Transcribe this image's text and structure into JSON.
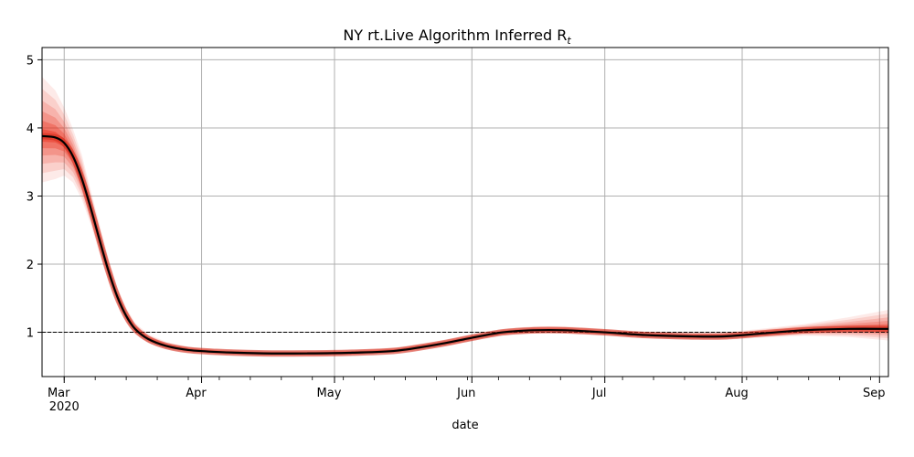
{
  "chart_data": {
    "type": "line",
    "title": "NY rt.Live Algorithm Inferred R",
    "title_subscript": "t",
    "xlabel": "date",
    "ylabel": "",
    "x_ticks": [
      {
        "label": "Mar",
        "sublabel": "2020",
        "date": "2020-03-01"
      },
      {
        "label": "Apr",
        "date": "2020-04-01"
      },
      {
        "label": "May",
        "date": "2020-05-01"
      },
      {
        "label": "Jun",
        "date": "2020-06-01"
      },
      {
        "label": "Jul",
        "date": "2020-07-01"
      },
      {
        "label": "Aug",
        "date": "2020-08-01"
      },
      {
        "label": "Sep",
        "date": "2020-09-01"
      }
    ],
    "y_ticks": [
      1,
      2,
      3,
      4,
      5
    ],
    "xlim": [
      "2020-02-25",
      "2020-09-03"
    ],
    "ylim": [
      0.35,
      5.18
    ],
    "grid": true,
    "reference_line": {
      "y": 1.0,
      "style": "dashed",
      "color": "#000000"
    },
    "colors": {
      "median": "#000000",
      "band": "#e8311f",
      "grid": "#b0b0b0"
    },
    "series": [
      {
        "role": "median",
        "points": [
          [
            "2020-02-25",
            3.88
          ],
          [
            "2020-02-28",
            3.86
          ],
          [
            "2020-03-01",
            3.78
          ],
          [
            "2020-03-03",
            3.58
          ],
          [
            "2020-03-05",
            3.25
          ],
          [
            "2020-03-07",
            2.82
          ],
          [
            "2020-03-09",
            2.35
          ],
          [
            "2020-03-11",
            1.9
          ],
          [
            "2020-03-13",
            1.52
          ],
          [
            "2020-03-15",
            1.24
          ],
          [
            "2020-03-17",
            1.05
          ],
          [
            "2020-03-20",
            0.9
          ],
          [
            "2020-03-24",
            0.8
          ],
          [
            "2020-03-29",
            0.74
          ],
          [
            "2020-04-05",
            0.71
          ],
          [
            "2020-04-15",
            0.69
          ],
          [
            "2020-04-25",
            0.69
          ],
          [
            "2020-05-05",
            0.7
          ],
          [
            "2020-05-15",
            0.73
          ],
          [
            "2020-05-25",
            0.83
          ],
          [
            "2020-06-01",
            0.92
          ],
          [
            "2020-06-08",
            1.0
          ],
          [
            "2020-06-15",
            1.03
          ],
          [
            "2020-06-22",
            1.03
          ],
          [
            "2020-07-01",
            1.0
          ],
          [
            "2020-07-10",
            0.96
          ],
          [
            "2020-07-20",
            0.94
          ],
          [
            "2020-07-28",
            0.94
          ],
          [
            "2020-08-05",
            0.98
          ],
          [
            "2020-08-15",
            1.03
          ],
          [
            "2020-08-25",
            1.05
          ],
          [
            "2020-09-03",
            1.05
          ]
        ]
      },
      {
        "role": "credible_interval",
        "points": [
          [
            "2020-02-25",
            3.2,
            4.75
          ],
          [
            "2020-02-28",
            3.25,
            4.55
          ],
          [
            "2020-03-01",
            3.3,
            4.3
          ],
          [
            "2020-03-03",
            3.2,
            3.98
          ],
          [
            "2020-03-05",
            2.95,
            3.6
          ],
          [
            "2020-03-07",
            2.58,
            3.08
          ],
          [
            "2020-03-09",
            2.15,
            2.58
          ],
          [
            "2020-03-11",
            1.74,
            2.08
          ],
          [
            "2020-03-13",
            1.4,
            1.66
          ],
          [
            "2020-03-15",
            1.14,
            1.36
          ],
          [
            "2020-03-17",
            0.97,
            1.14
          ],
          [
            "2020-03-20",
            0.84,
            0.97
          ],
          [
            "2020-03-24",
            0.75,
            0.86
          ],
          [
            "2020-03-29",
            0.7,
            0.79
          ],
          [
            "2020-04-05",
            0.67,
            0.75
          ],
          [
            "2020-04-15",
            0.65,
            0.73
          ],
          [
            "2020-04-25",
            0.65,
            0.73
          ],
          [
            "2020-05-05",
            0.66,
            0.74
          ],
          [
            "2020-05-15",
            0.69,
            0.78
          ],
          [
            "2020-05-25",
            0.78,
            0.88
          ],
          [
            "2020-06-01",
            0.87,
            0.97
          ],
          [
            "2020-06-08",
            0.95,
            1.05
          ],
          [
            "2020-06-15",
            0.98,
            1.09
          ],
          [
            "2020-06-22",
            0.98,
            1.09
          ],
          [
            "2020-07-01",
            0.95,
            1.05
          ],
          [
            "2020-07-10",
            0.91,
            1.01
          ],
          [
            "2020-07-20",
            0.89,
            0.99
          ],
          [
            "2020-07-28",
            0.89,
            1.0
          ],
          [
            "2020-08-05",
            0.92,
            1.05
          ],
          [
            "2020-08-15",
            0.95,
            1.12
          ],
          [
            "2020-08-25",
            0.93,
            1.22
          ],
          [
            "2020-09-03",
            0.88,
            1.33
          ]
        ]
      }
    ]
  }
}
